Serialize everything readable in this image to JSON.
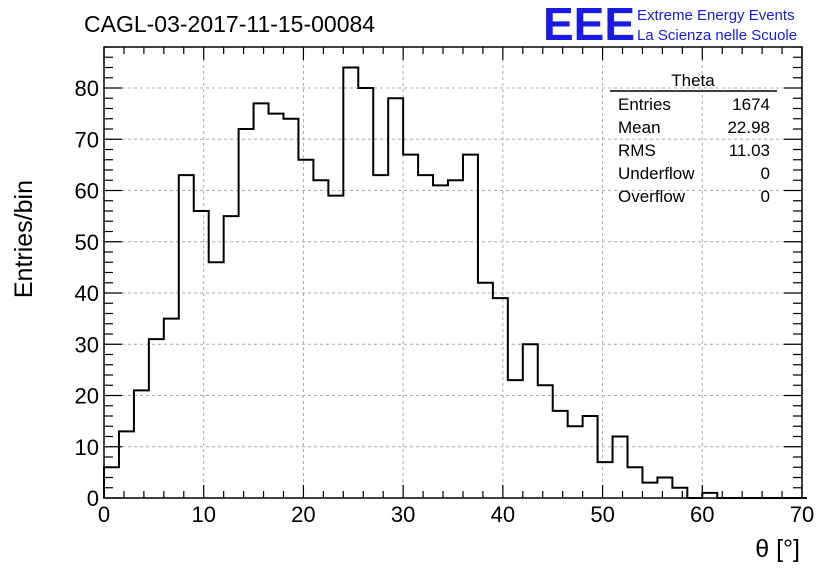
{
  "header": {
    "run_title": "CAGL-03-2017-11-15-00084",
    "logo": "EEE",
    "logo_line1": "Extreme Energy Events",
    "logo_line2": "La Scienza nelle Scuole"
  },
  "stats": {
    "name": "Theta",
    "rows": [
      {
        "label": "Entries",
        "value": "1674"
      },
      {
        "label": "Mean",
        "value": "22.98"
      },
      {
        "label": "RMS",
        "value": "11.03"
      },
      {
        "label": "Underflow",
        "value": "0"
      },
      {
        "label": "Overflow",
        "value": "0"
      }
    ]
  },
  "colors": {
    "logo": "#1a1ae6",
    "line": "#000000",
    "grid": "#aaaaaa"
  },
  "chart_data": {
    "type": "bar",
    "style": "step histogram",
    "title": "CAGL-03-2017-11-15-00084",
    "xlabel": "θ [°]",
    "ylabel": "Entries/bin",
    "xlim": [
      0,
      70
    ],
    "ylim": [
      0,
      88
    ],
    "bin_width": 1.5,
    "x_ticks": [
      0,
      10,
      20,
      30,
      40,
      50,
      60,
      70
    ],
    "y_ticks": [
      0,
      10,
      20,
      30,
      40,
      50,
      60,
      70,
      80
    ],
    "grid": true,
    "legend": "stats box top-right",
    "series": [
      {
        "values": [
          6,
          13,
          21,
          31,
          35,
          63,
          56,
          46,
          55,
          72,
          77,
          75,
          74,
          66,
          62,
          59,
          84,
          80,
          63,
          78,
          67,
          63,
          61,
          62,
          67,
          42,
          39,
          23,
          30,
          22,
          17,
          14,
          16,
          7,
          12,
          6,
          3,
          4,
          2,
          0,
          1,
          0,
          0,
          0,
          0,
          0,
          0
        ]
      }
    ]
  }
}
